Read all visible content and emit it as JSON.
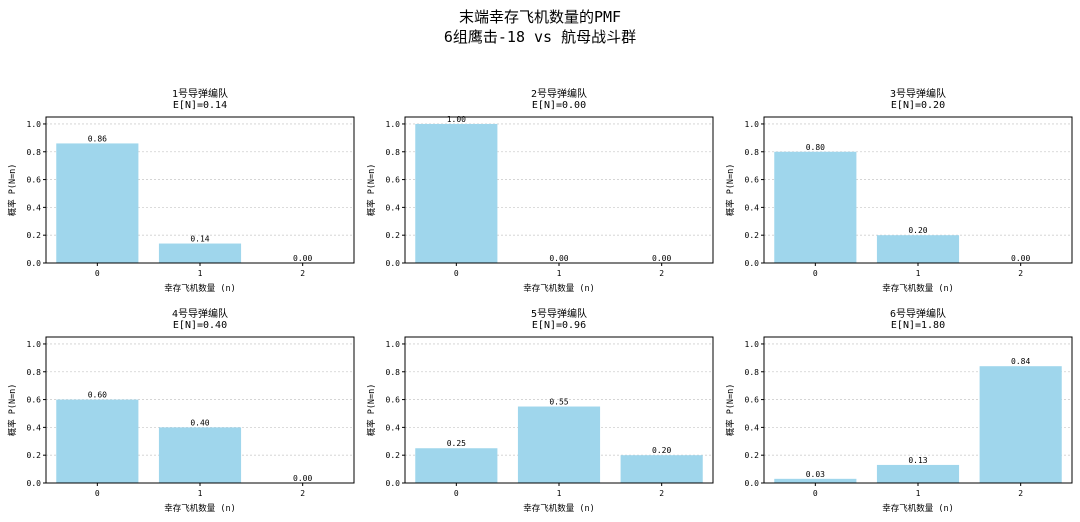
{
  "title": {
    "line1": "末端幸存飞机数量的PMF",
    "line2": "6组鹰击-18 vs 航母战斗群"
  },
  "bar_color": "#9fd6ec",
  "chart_data": [
    {
      "type": "bar",
      "title": "1号导弹编队",
      "subtitle": "E[N]=0.14",
      "categories": [
        "0",
        "1",
        "2"
      ],
      "values": [
        0.86,
        0.14,
        0.0
      ],
      "value_labels": [
        "0.86",
        "0.14",
        "0.00"
      ],
      "xlabel": "幸存飞机数量 (n)",
      "ylabel": "概率 P(N=n)",
      "ylim": [
        0,
        1.05
      ],
      "yticks": [
        "0.0",
        "0.2",
        "0.4",
        "0.6",
        "0.8",
        "1.0"
      ],
      "grid": "y-dotted"
    },
    {
      "type": "bar",
      "title": "2号导弹编队",
      "subtitle": "E[N]=0.00",
      "categories": [
        "0",
        "1",
        "2"
      ],
      "values": [
        1.0,
        0.0,
        0.0
      ],
      "value_labels": [
        "1.00",
        "0.00",
        "0.00"
      ],
      "xlabel": "幸存飞机数量 (n)",
      "ylabel": "概率 P(N=n)",
      "ylim": [
        0,
        1.05
      ],
      "yticks": [
        "0.0",
        "0.2",
        "0.4",
        "0.6",
        "0.8",
        "1.0"
      ],
      "grid": "y-dotted"
    },
    {
      "type": "bar",
      "title": "3号导弹编队",
      "subtitle": "E[N]=0.20",
      "categories": [
        "0",
        "1",
        "2"
      ],
      "values": [
        0.8,
        0.2,
        0.0
      ],
      "value_labels": [
        "0.80",
        "0.20",
        "0.00"
      ],
      "xlabel": "幸存飞机数量 (n)",
      "ylabel": "概率 P(N=n)",
      "ylim": [
        0,
        1.05
      ],
      "yticks": [
        "0.0",
        "0.2",
        "0.4",
        "0.6",
        "0.8",
        "1.0"
      ],
      "grid": "y-dotted"
    },
    {
      "type": "bar",
      "title": "4号导弹编队",
      "subtitle": "E[N]=0.40",
      "categories": [
        "0",
        "1",
        "2"
      ],
      "values": [
        0.6,
        0.4,
        0.0
      ],
      "value_labels": [
        "0.60",
        "0.40",
        "0.00"
      ],
      "xlabel": "幸存飞机数量 (n)",
      "ylabel": "概率 P(N=n)",
      "ylim": [
        0,
        1.05
      ],
      "yticks": [
        "0.0",
        "0.2",
        "0.4",
        "0.6",
        "0.8",
        "1.0"
      ],
      "grid": "y-dotted"
    },
    {
      "type": "bar",
      "title": "5号导弹编队",
      "subtitle": "E[N]=0.96",
      "categories": [
        "0",
        "1",
        "2"
      ],
      "values": [
        0.25,
        0.55,
        0.2
      ],
      "value_labels": [
        "0.25",
        "0.55",
        "0.20"
      ],
      "xlabel": "幸存飞机数量 (n)",
      "ylabel": "概率 P(N=n)",
      "ylim": [
        0,
        1.05
      ],
      "yticks": [
        "0.0",
        "0.2",
        "0.4",
        "0.6",
        "0.8",
        "1.0"
      ],
      "grid": "y-dotted"
    },
    {
      "type": "bar",
      "title": "6号导弹编队",
      "subtitle": "E[N]=1.80",
      "categories": [
        "0",
        "1",
        "2"
      ],
      "values": [
        0.03,
        0.13,
        0.84
      ],
      "value_labels": [
        "0.03",
        "0.13",
        "0.84"
      ],
      "xlabel": "幸存飞机数量 (n)",
      "ylabel": "概率 P(N=n)",
      "ylim": [
        0,
        1.05
      ],
      "yticks": [
        "0.0",
        "0.2",
        "0.4",
        "0.6",
        "0.8",
        "1.0"
      ],
      "grid": "y-dotted"
    }
  ]
}
